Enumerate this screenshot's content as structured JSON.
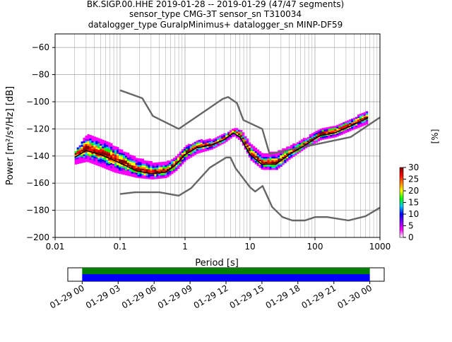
{
  "title": {
    "line1": "BK.SIGP.00.HHE   2019-01-28 -- 2019-01-29  (47/47 segments)",
    "line2": "sensor_type CMG-3T sensor_sn T310034",
    "line3": "datalogger_type GuralpMinimus+ datalogger_sn MINP-DF59"
  },
  "chart_data": [
    {
      "type": "heatmap",
      "xlabel": "Period [s]",
      "ylabel": "Power [m²/s⁴/Hz] [dB]",
      "xscale": "log",
      "xlim": [
        0.01,
        1000
      ],
      "ylim": [
        -200,
        -50
      ],
      "xticks": [
        {
          "value": 0.01,
          "label": "0.01"
        },
        {
          "value": 0.1,
          "label": "0.1"
        },
        {
          "value": 1,
          "label": "1"
        },
        {
          "value": 10,
          "label": "10"
        },
        {
          "value": 100,
          "label": "100"
        },
        {
          "value": 1000,
          "label": "1000"
        }
      ],
      "yticks": [
        {
          "value": -60,
          "label": "−60"
        },
        {
          "value": -80,
          "label": "−80"
        },
        {
          "value": -100,
          "label": "−100"
        },
        {
          "value": -120,
          "label": "−120"
        },
        {
          "value": -140,
          "label": "−140"
        },
        {
          "value": -160,
          "label": "−160"
        },
        {
          "value": -180,
          "label": "−180"
        },
        {
          "value": -200,
          "label": "−200"
        }
      ],
      "grid": true,
      "colorbar": {
        "label": "[%]",
        "range": [
          0,
          30
        ],
        "ticks": [
          "0",
          "5",
          "10",
          "15",
          "20",
          "25",
          "30"
        ],
        "colors": [
          "#ffffff",
          "#ff00ff",
          "#8000ff",
          "#0000ff",
          "#00c8ff",
          "#00ff00",
          "#ffff00",
          "#ff8000",
          "#ff0000",
          "#800000"
        ]
      },
      "nhnm": {
        "color": "#666666",
        "points": [
          [
            0.1,
            -91.5
          ],
          [
            0.22,
            -97.4
          ],
          [
            0.32,
            -110.5
          ],
          [
            0.8,
            -120
          ],
          [
            3.8,
            -97.9
          ],
          [
            4.6,
            -96.5
          ],
          [
            6.3,
            -101
          ],
          [
            7.9,
            -113.5
          ],
          [
            15.4,
            -120
          ],
          [
            20,
            -138.5
          ],
          [
            354.8,
            -126
          ],
          [
            1000,
            -111.5
          ]
        ]
      },
      "nlnm": {
        "color": "#666666",
        "points": [
          [
            0.1,
            -168
          ],
          [
            0.17,
            -166.7
          ],
          [
            0.4,
            -166.7
          ],
          [
            0.8,
            -169.2
          ],
          [
            1.24,
            -163.7
          ],
          [
            2.4,
            -148.6
          ],
          [
            4.3,
            -141.1
          ],
          [
            5,
            -141.1
          ],
          [
            6,
            -149
          ],
          [
            10,
            -163
          ],
          [
            12,
            -166.2
          ],
          [
            15.6,
            -162.1
          ],
          [
            21.9,
            -177.5
          ],
          [
            31.6,
            -185
          ],
          [
            45,
            -187.5
          ],
          [
            70,
            -187.5
          ],
          [
            101,
            -185
          ],
          [
            154,
            -185
          ],
          [
            328,
            -187.5
          ],
          [
            600,
            -184.4
          ],
          [
            1000,
            -178
          ]
        ]
      },
      "ppsd_band": {
        "points": [
          [
            0.02,
            -139,
            -146,
            -137
          ],
          [
            0.03,
            -134,
            -144,
            -124
          ],
          [
            0.05,
            -138,
            -148,
            -128
          ],
          [
            0.08,
            -142,
            -152,
            -133
          ],
          [
            0.12,
            -146,
            -154,
            -138
          ],
          [
            0.18,
            -150,
            -156,
            -142
          ],
          [
            0.3,
            -152,
            -157,
            -145
          ],
          [
            0.5,
            -151,
            -156,
            -145
          ],
          [
            0.7,
            -146,
            -151,
            -141
          ],
          [
            1,
            -138,
            -143,
            -133
          ],
          [
            1.5,
            -133,
            -138,
            -129
          ],
          [
            2.5,
            -132,
            -135,
            -128
          ],
          [
            4,
            -127,
            -130,
            -124
          ],
          [
            5.5,
            -122,
            -125,
            -120
          ],
          [
            7,
            -125,
            -129,
            -121
          ],
          [
            10,
            -138,
            -143,
            -132
          ],
          [
            15,
            -145,
            -150,
            -139
          ],
          [
            25,
            -145,
            -150,
            -137
          ],
          [
            40,
            -138,
            -142,
            -133
          ],
          [
            70,
            -131,
            -134,
            -127
          ],
          [
            120,
            -124,
            -128,
            -120
          ],
          [
            200,
            -122,
            -126,
            -118
          ],
          [
            350,
            -117,
            -121,
            -113
          ],
          [
            650,
            -111,
            -116,
            -107
          ]
        ]
      },
      "mode_line": {
        "color": "#000000",
        "points": [
          [
            0.02,
            -141
          ],
          [
            0.03,
            -136
          ],
          [
            0.05,
            -139
          ],
          [
            0.08,
            -143
          ],
          [
            0.12,
            -147
          ],
          [
            0.18,
            -151
          ],
          [
            0.3,
            -153
          ],
          [
            0.5,
            -152
          ],
          [
            0.7,
            -147
          ],
          [
            1,
            -139
          ],
          [
            1.5,
            -134
          ],
          [
            2.5,
            -132
          ],
          [
            4,
            -128
          ],
          [
            5.5,
            -123
          ],
          [
            7,
            -126
          ],
          [
            10,
            -139
          ],
          [
            15,
            -146
          ],
          [
            25,
            -146
          ],
          [
            40,
            -139
          ],
          [
            70,
            -132
          ],
          [
            120,
            -125
          ],
          [
            200,
            -123
          ],
          [
            350,
            -118
          ],
          [
            650,
            -112
          ]
        ]
      }
    },
    {
      "type": "timeline",
      "tick_labels": [
        "01-29 00",
        "01-29 03",
        "01-29 06",
        "01-29 09",
        "01-29 12",
        "01-29 15",
        "01-29 18",
        "01-29 21",
        "01-30 00"
      ],
      "xrange_hours": [
        -1.2,
        25.2
      ],
      "bars": [
        {
          "color": "#008000",
          "start_hour": 0,
          "end_hour": 24
        },
        {
          "color": "#0000ff",
          "start_hour": 0,
          "end_hour": 24
        }
      ]
    }
  ]
}
